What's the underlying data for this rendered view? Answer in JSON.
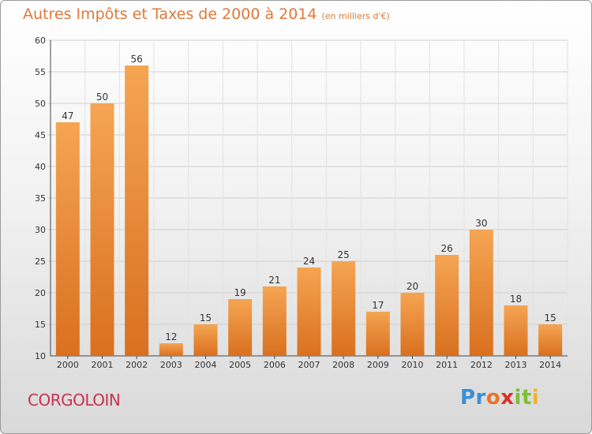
{
  "chart_data": {
    "type": "bar",
    "title": "Autres Impôts et Taxes de 2000 à 2014",
    "subtitle": "(en milliers d'€)",
    "categories": [
      "2000",
      "2001",
      "2002",
      "2003",
      "2004",
      "2005",
      "2006",
      "2007",
      "2008",
      "2009",
      "2010",
      "2011",
      "2012",
      "2013",
      "2014"
    ],
    "values": [
      47,
      50,
      56,
      12,
      15,
      19,
      21,
      24,
      25,
      17,
      20,
      26,
      30,
      18,
      15
    ],
    "ylim": [
      10,
      60
    ],
    "yticks": [
      10,
      15,
      20,
      25,
      30,
      35,
      40,
      45,
      50,
      55,
      60
    ],
    "grid": true,
    "bar_color_top": "#f5a553",
    "bar_color_bottom": "#d9701f"
  },
  "location": "CORGOLOIN",
  "logo": {
    "text": "Proxiti",
    "parts": [
      "Pr",
      "o",
      "x",
      "it",
      "i"
    ]
  }
}
